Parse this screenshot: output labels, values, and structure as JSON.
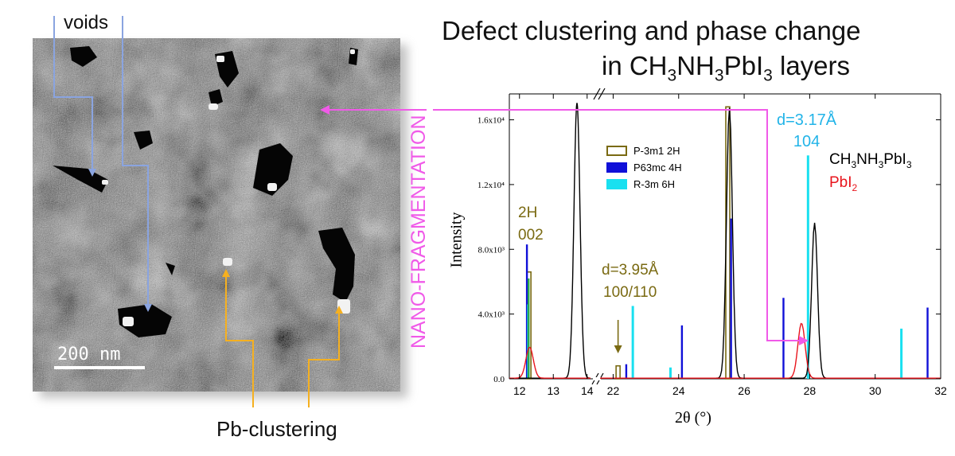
{
  "figure": {
    "title_line1": "Defect clustering and phase change",
    "title_line2_pre": "in CH",
    "title_line2_s1": "3",
    "title_line2_mid1": "NH",
    "title_line2_s2": "3",
    "title_line2_mid2": "PbI",
    "title_line2_s3": "3",
    "title_line2_post": " layers",
    "colors": {
      "black": "#000000",
      "red": "#e8141c",
      "olive": "#7a6a12",
      "blue": "#1010d8",
      "cyan": "#19e0f0",
      "green": "#2aa84a",
      "magenta": "#f05ae8",
      "orange": "#f5b020",
      "steel_blue": "#8aa4e0",
      "cyan_text": "#22b4e8"
    }
  },
  "sem_image": {
    "voids_label": "voids",
    "scale_bar_label": "200 nm",
    "pb_label": "Pb-clustering",
    "nano_label": "NANO-FRAGMENTATION"
  },
  "chart_data": {
    "type": "line",
    "xlabel": "2θ (°)",
    "ylabel": "Intensity",
    "x_axis_broken": true,
    "x_segments": [
      [
        11.7,
        14.1
      ],
      [
        21.6,
        32.0
      ]
    ],
    "x_ticks": [
      "12",
      "13",
      "14",
      "22",
      "24",
      "26",
      "28",
      "30",
      "32"
    ],
    "y_ticks": [
      "0.0",
      "4.0x10³",
      "8.0x10³",
      "1.2x10⁴",
      "1.6x10⁴"
    ],
    "ylim": [
      0,
      17600
    ],
    "series": [
      {
        "name": "CH₃NH₃PbI₃",
        "color": "#000000",
        "peaks": [
          {
            "center": 13.7,
            "height": 17000
          },
          {
            "center": 25.55,
            "height": 16700
          },
          {
            "center": 28.15,
            "height": 9600
          }
        ]
      },
      {
        "name": "PbI₂",
        "color": "#e8141c",
        "peaks": [
          {
            "center": 12.3,
            "height": 1900
          },
          {
            "center": 27.75,
            "height": 3400
          }
        ]
      }
    ],
    "reference_markers": [
      {
        "name": "P-3m1 2H",
        "color": "#7a6a12",
        "lines": [
          [
            12.28,
            6600
          ],
          [
            22.15,
            800
          ],
          [
            25.5,
            16800
          ]
        ]
      },
      {
        "name": "P63mc 4H",
        "color": "#1010d8",
        "lines": [
          [
            12.22,
            8300
          ],
          [
            22.4,
            900
          ],
          [
            24.1,
            3300
          ],
          [
            25.6,
            9900
          ],
          [
            27.2,
            5000
          ],
          [
            31.6,
            4400
          ]
        ]
      },
      {
        "name": "R-3m 6H",
        "color": "#19e0f0",
        "lines": [
          [
            12.26,
            4600
          ],
          [
            22.6,
            4500
          ],
          [
            23.75,
            700
          ],
          [
            27.95,
            13800
          ],
          [
            30.8,
            3100
          ]
        ]
      },
      {
        "name": "",
        "color": "#2aa84a",
        "lines": [
          [
            12.27,
            6200
          ]
        ]
      }
    ],
    "annotations": {
      "peak_2h_line1": "2H",
      "peak_2h_line2": "002",
      "peak_395_line1": "d=3.95Å",
      "peak_395_line2": "100/110",
      "peak_317_line1": "d=3.17Å",
      "peak_317_line2": "104",
      "series1_pre": "CH",
      "series1_s1": "3",
      "series1_mid1": "NH",
      "series1_s2": "3",
      "series1_mid2": "PbI",
      "series1_s3": "3",
      "series2_pre": "PbI",
      "series2_s1": "2"
    },
    "legend_placement": "upper-left inside plot"
  }
}
